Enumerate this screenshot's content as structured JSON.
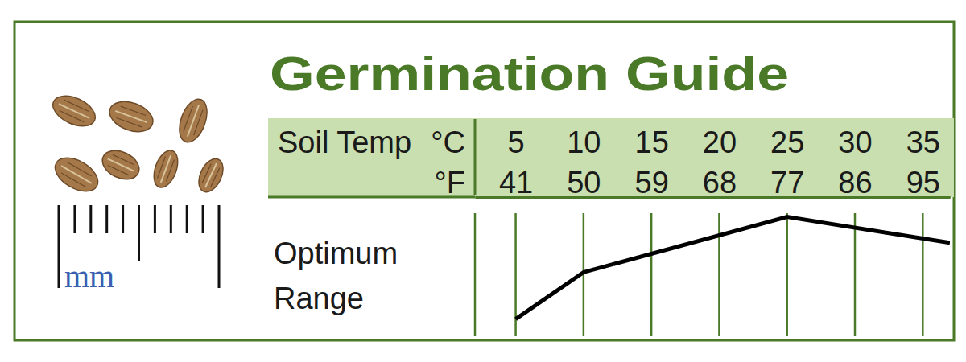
{
  "chart_data": {
    "type": "line",
    "title": "Germination Guide",
    "xlabel": "Soil Temp",
    "xunit": "°C",
    "x2unit": "°F",
    "ylabel": "Optimum Range",
    "annotations": [
      "mm"
    ],
    "x": [
      5,
      10,
      25,
      37
    ],
    "values": [
      14,
      52,
      97,
      76
    ],
    "color": "#000000",
    "xlim": [
      2,
      37
    ],
    "xticks": [
      5,
      10,
      15,
      20,
      25,
      30,
      35
    ],
    "x2lim": [
      35.6,
      98.6
    ],
    "x2ticks": [
      41,
      50,
      59,
      68,
      77,
      86,
      95
    ],
    "ylim": [
      0,
      100
    ],
    "grid": true,
    "tick_labels": "x"
  }
}
